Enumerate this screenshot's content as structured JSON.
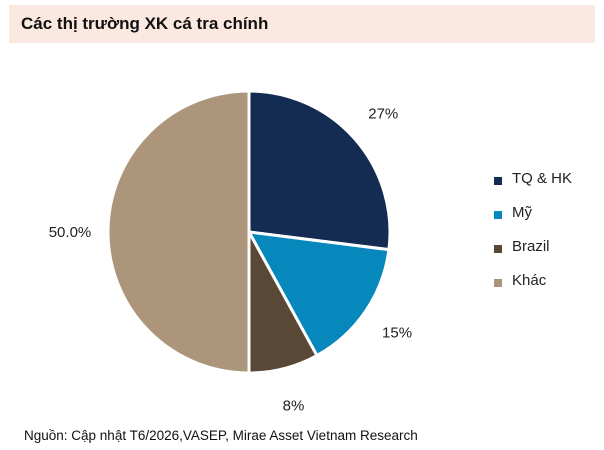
{
  "title": "Các thị trường XK cá tra chính",
  "source": "Nguồn: Cập nhật T6/2026,VASEP, Mirae Asset Vietnam Research",
  "chart_data": {
    "type": "pie",
    "title": "Các thị trường XK cá tra chính",
    "slices": [
      {
        "label": "TQ & HK",
        "value": 27,
        "value_label": "27%",
        "color": "#142c52"
      },
      {
        "label": "Mỹ",
        "value": 15,
        "value_label": "15%",
        "color": "#0788bd"
      },
      {
        "label": "Brazil",
        "value": 8,
        "value_label": "8%",
        "color": "#5a4836"
      },
      {
        "label": "Khác",
        "value": 50,
        "value_label": "50.0%",
        "color": "#ad957b"
      }
    ],
    "start_angle": "12 o'clock",
    "direction": "clockwise",
    "legend_position": "right"
  }
}
